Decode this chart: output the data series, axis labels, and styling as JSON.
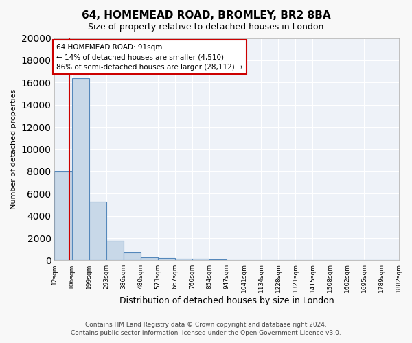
{
  "title": "64, HOMEMEAD ROAD, BROMLEY, BR2 8BA",
  "subtitle": "Size of property relative to detached houses in London",
  "xlabel": "Distribution of detached houses by size in London",
  "ylabel": "Number of detached properties",
  "bar_color": "#c8d8e8",
  "bar_edge_color": "#5588bb",
  "background_color": "#eef2f8",
  "grid_color": "#ffffff",
  "bin_edges": [
    12,
    106,
    199,
    293,
    386,
    480,
    573,
    667,
    760,
    854,
    947,
    1041,
    1134,
    1228,
    1321,
    1415,
    1508,
    1602,
    1695,
    1789,
    1882
  ],
  "bin_labels": [
    "12sqm",
    "106sqm",
    "199sqm",
    "293sqm",
    "386sqm",
    "480sqm",
    "573sqm",
    "667sqm",
    "760sqm",
    "854sqm",
    "947sqm",
    "1041sqm",
    "1134sqm",
    "1228sqm",
    "1321sqm",
    "1415sqm",
    "1508sqm",
    "1602sqm",
    "1695sqm",
    "1789sqm",
    "1882sqm"
  ],
  "bar_heights": [
    8000,
    16400,
    5300,
    1750,
    700,
    300,
    200,
    150,
    150,
    100,
    50,
    30,
    20,
    15,
    10,
    8,
    5,
    4,
    3,
    2
  ],
  "ylim": [
    0,
    20000
  ],
  "yticks": [
    0,
    2000,
    4000,
    6000,
    8000,
    10000,
    12000,
    14000,
    16000,
    18000,
    20000
  ],
  "property_size": 91,
  "red_line_color": "#cc0000",
  "annotation_text": "64 HOMEMEAD ROAD: 91sqm\n← 14% of detached houses are smaller (4,510)\n86% of semi-detached houses are larger (28,112) →",
  "annotation_box_color": "#ffffff",
  "annotation_box_edge_color": "#cc0000",
  "footer_line1": "Contains HM Land Registry data © Crown copyright and database right 2024.",
  "footer_line2": "Contains public sector information licensed under the Open Government Licence v3.0."
}
